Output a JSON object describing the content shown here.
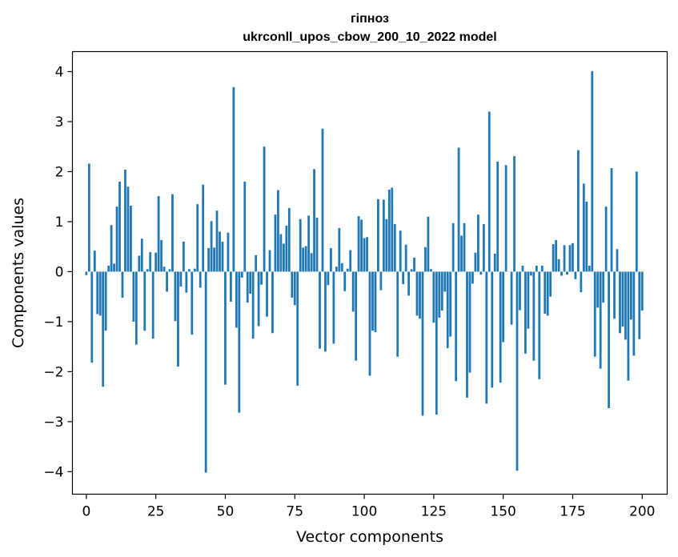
{
  "chart_data": {
    "type": "bar",
    "title_line1": "гіпноз",
    "title_line2": "ukrconll_upos_cbow_200_10_2022 model",
    "xlabel": "Vector components",
    "ylabel": "Components values",
    "xlim": [
      -5,
      209
    ],
    "ylim": [
      -4.45,
      4.4
    ],
    "x_ticks": [
      0,
      25,
      50,
      75,
      100,
      125,
      150,
      175,
      200
    ],
    "x_tick_labels": [
      "0",
      "25",
      "50",
      "75",
      "100",
      "125",
      "150",
      "175",
      "200"
    ],
    "y_ticks": [
      -4,
      -3,
      -2,
      -1,
      0,
      1,
      2,
      3,
      4
    ],
    "y_tick_labels": [
      "−4",
      "−3",
      "−2",
      "−1",
      "0",
      "1",
      "2",
      "3",
      "4"
    ],
    "grid": false,
    "bar_color": "#1f77b4",
    "values": [
      -0.07,
      2.16,
      -1.82,
      0.42,
      -0.85,
      -0.88,
      -2.3,
      -1.18,
      0.12,
      0.93,
      0.16,
      1.3,
      1.8,
      -0.52,
      2.04,
      1.7,
      1.32,
      -1.0,
      -1.46,
      0.32,
      0.66,
      -1.18,
      0.05,
      0.39,
      -1.34,
      0.38,
      1.51,
      0.63,
      0.1,
      -0.4,
      0.05,
      1.55,
      -0.99,
      -1.9,
      -0.3,
      0.6,
      -0.42,
      0.05,
      -1.26,
      0.06,
      1.35,
      -0.32,
      1.74,
      -4.02,
      0.47,
      1.01,
      0.48,
      1.22,
      0.8,
      0.6,
      -2.26,
      0.78,
      -0.6,
      3.69,
      -1.12,
      -2.82,
      -0.12,
      1.8,
      -0.62,
      -0.44,
      -1.34,
      0.33,
      -1.09,
      -0.26,
      2.5,
      -0.9,
      0.43,
      -1.23,
      1.14,
      1.63,
      0.75,
      0.56,
      0.92,
      1.27,
      -0.52,
      -0.67,
      -2.28,
      1.05,
      0.48,
      0.51,
      1.12,
      0.37,
      2.05,
      1.08,
      -1.54,
      2.86,
      -1.6,
      -0.27,
      0.47,
      -1.44,
      0.1,
      0.87,
      0.17,
      -0.39,
      0.06,
      0.43,
      -0.8,
      -1.78,
      1.11,
      1.04,
      0.67,
      0.69,
      -2.08,
      -1.18,
      -1.21,
      1.45,
      -0.37,
      1.44,
      1.05,
      1.64,
      1.68,
      0.95,
      -1.7,
      0.82,
      -0.25,
      0.54,
      -0.48,
      0.05,
      0.28,
      -0.88,
      -0.94,
      -2.88,
      0.49,
      1.1,
      0.05,
      -1.02,
      -2.86,
      -0.92,
      -0.78,
      -0.4,
      -1.53,
      -1.3,
      0.97,
      -2.19,
      2.48,
      0.72,
      0.97,
      -2.52,
      -2.02,
      -0.24,
      0.38,
      1.14,
      -0.06,
      0.95,
      -2.64,
      3.2,
      -2.32,
      0.36,
      2.2,
      -2.22,
      -1.41,
      2.13,
      0.0,
      -1.06,
      2.31,
      -3.98,
      -0.77,
      0.12,
      -1.64,
      -1.14,
      -0.08,
      -1.78,
      0.12,
      -2.15,
      0.12,
      -0.84,
      -0.88,
      -0.5,
      0.55,
      0.63,
      0.25,
      -0.08,
      0.53,
      -0.06,
      0.53,
      0.57,
      -0.15,
      2.43,
      -0.41,
      1.76,
      1.4,
      0.12,
      4.01,
      -1.7,
      -0.72,
      -1.94,
      -0.62,
      1.3,
      -2.73,
      2.07,
      -0.94,
      0.45,
      -1.23,
      -1.1,
      -1.36,
      -2.18,
      -0.96,
      -1.68,
      2.0,
      -1.35,
      -0.78
    ]
  }
}
